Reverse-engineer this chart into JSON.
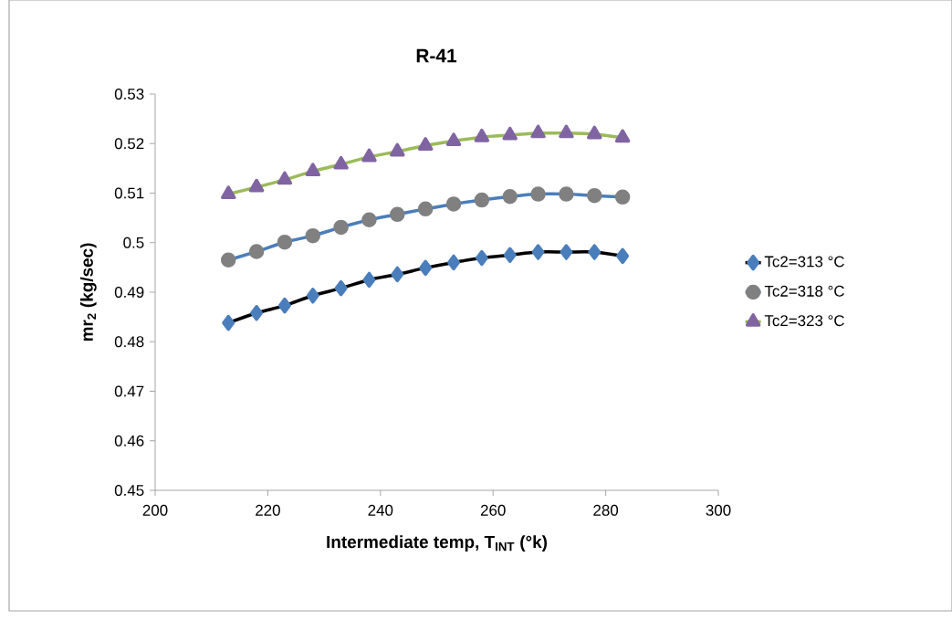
{
  "chart_data": {
    "type": "line",
    "title": "R-41",
    "xlabel": "Intermediate temp, T$_{INT}$ (°k)",
    "ylabel": "mr$_{2}$ (kg/sec)",
    "x": [
      213,
      218,
      223,
      228,
      233,
      238,
      243,
      248,
      253,
      258,
      263,
      268,
      273,
      278,
      283
    ],
    "series": [
      {
        "name": "Tc2=313 °C",
        "color": "#000000",
        "marker": "diamond",
        "values": [
          0.4838,
          0.4858,
          0.4873,
          0.4893,
          0.4908,
          0.4925,
          0.4936,
          0.4949,
          0.496,
          0.4969,
          0.4975,
          0.4981,
          0.4981,
          0.4981,
          0.4973
        ]
      },
      {
        "name": "Tc2=318 °C",
        "color": "#4a7ebb",
        "marker": "circle",
        "values": [
          0.4965,
          0.4982,
          0.5001,
          0.5014,
          0.5031,
          0.5046,
          0.5057,
          0.5068,
          0.5078,
          0.5086,
          0.5093,
          0.5098,
          0.5098,
          0.5095,
          0.5092
        ]
      },
      {
        "name": "Tc2=323 °C",
        "color": "#9bbb59",
        "marker": "triangle",
        "values": [
          0.5098,
          0.5112,
          0.5127,
          0.5144,
          0.5158,
          0.5173,
          0.5184,
          0.5196,
          0.5205,
          0.5213,
          0.5217,
          0.5221,
          0.5221,
          0.5219,
          0.5212
        ]
      }
    ],
    "xlim": [
      200,
      300
    ],
    "xticks": [
      200,
      220,
      240,
      260,
      280,
      300
    ],
    "ylim": [
      0.45,
      0.53
    ],
    "yticks": [
      {
        "value": 0.45,
        "label": "0.45"
      },
      {
        "value": 0.46,
        "label": "0.46"
      },
      {
        "value": 0.47,
        "label": "0.47"
      },
      {
        "value": 0.48,
        "label": "0.48"
      },
      {
        "value": 0.49,
        "label": "0.49"
      },
      {
        "value": 0.5,
        "label": "0.5"
      },
      {
        "value": 0.51,
        "label": "0.51"
      },
      {
        "value": 0.52,
        "label": "0.52"
      },
      {
        "value": 0.53,
        "label": "0.53"
      }
    ],
    "grid": false,
    "legend": "right",
    "line_style": "solid"
  }
}
